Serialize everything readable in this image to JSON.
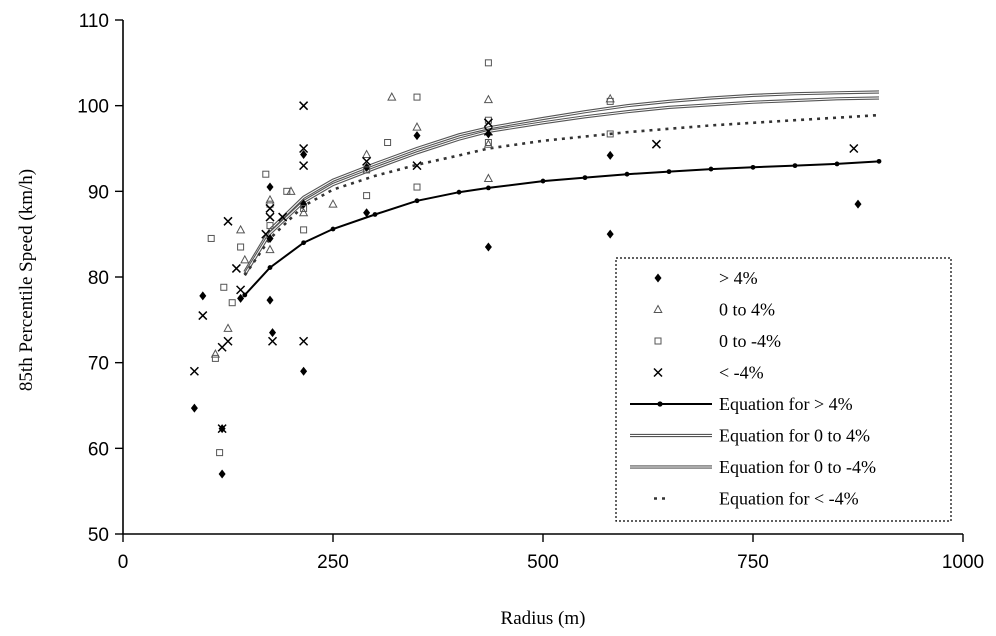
{
  "chart_data": {
    "type": "scatter",
    "title": "",
    "xlabel": "Radius (m)",
    "ylabel": "85th Percentile Speed (km/h)",
    "xlim": [
      0,
      1000
    ],
    "ylim": [
      50,
      110
    ],
    "xticks": [
      0,
      250,
      500,
      750,
      1000
    ],
    "yticks": [
      50,
      60,
      70,
      80,
      90,
      100,
      110
    ],
    "grid": false,
    "legend_position": "bottom-right",
    "series": [
      {
        "name": "> 4%",
        "kind": "points",
        "marker": "diamond",
        "points": [
          [
            85,
            64.7
          ],
          [
            95,
            77.8
          ],
          [
            118,
            62.3
          ],
          [
            118,
            57
          ],
          [
            140,
            77.5
          ],
          [
            175,
            90.5
          ],
          [
            175,
            84.5
          ],
          [
            175,
            77.3
          ],
          [
            178,
            73.5
          ],
          [
            215,
            69
          ],
          [
            215,
            88.5
          ],
          [
            215,
            94.3
          ],
          [
            290,
            92.8
          ],
          [
            290,
            87.5
          ],
          [
            350,
            96.5
          ],
          [
            435,
            96.7
          ],
          [
            435,
            83.5
          ],
          [
            580,
            94.2
          ],
          [
            580,
            85
          ],
          [
            875,
            88.5
          ]
        ]
      },
      {
        "name": "0 to 4%",
        "kind": "points",
        "marker": "triangle",
        "points": [
          [
            110,
            71
          ],
          [
            125,
            74
          ],
          [
            140,
            85.5
          ],
          [
            145,
            82
          ],
          [
            175,
            83.2
          ],
          [
            175,
            89
          ],
          [
            200,
            90
          ],
          [
            215,
            87.5
          ],
          [
            250,
            88.5
          ],
          [
            290,
            94.3
          ],
          [
            320,
            101
          ],
          [
            350,
            97.5
          ],
          [
            435,
            100.7
          ],
          [
            435,
            91.5
          ],
          [
            435,
            95.5
          ],
          [
            580,
            100.8
          ]
        ]
      },
      {
        "name": "0 to -4%",
        "kind": "points",
        "marker": "square",
        "points": [
          [
            105,
            84.5
          ],
          [
            115,
            59.5
          ],
          [
            110,
            70.5
          ],
          [
            120,
            78.8
          ],
          [
            130,
            77
          ],
          [
            140,
            83.5
          ],
          [
            170,
            92
          ],
          [
            175,
            88.5
          ],
          [
            175,
            86
          ],
          [
            195,
            90
          ],
          [
            215,
            85.5
          ],
          [
            215,
            88
          ],
          [
            290,
            92.5
          ],
          [
            290,
            89.5
          ],
          [
            315,
            95.7
          ],
          [
            350,
            101
          ],
          [
            350,
            90.5
          ],
          [
            435,
            105
          ],
          [
            435,
            98.3
          ],
          [
            435,
            95.7
          ],
          [
            580,
            96.7
          ],
          [
            580,
            100.5
          ]
        ]
      },
      {
        "name": "< -4%",
        "kind": "points",
        "marker": "x",
        "points": [
          [
            85,
            69
          ],
          [
            95,
            75.5
          ],
          [
            118,
            62.3
          ],
          [
            118,
            71.8
          ],
          [
            125,
            72.5
          ],
          [
            125,
            86.5
          ],
          [
            135,
            81
          ],
          [
            140,
            78.5
          ],
          [
            170,
            85
          ],
          [
            175,
            87
          ],
          [
            175,
            88
          ],
          [
            178,
            72.5
          ],
          [
            190,
            87
          ],
          [
            215,
            100
          ],
          [
            215,
            95
          ],
          [
            215,
            93
          ],
          [
            215,
            72.5
          ],
          [
            290,
            93.5
          ],
          [
            350,
            93
          ],
          [
            435,
            97
          ],
          [
            435,
            98
          ],
          [
            635,
            95.5
          ],
          [
            870,
            95
          ]
        ]
      },
      {
        "name": "Equation for > 4%",
        "kind": "curve",
        "style": "solid-dots",
        "points": [
          [
            145,
            77.9
          ],
          [
            175,
            81.1
          ],
          [
            215,
            84
          ],
          [
            250,
            85.6
          ],
          [
            300,
            87.3
          ],
          [
            350,
            88.9
          ],
          [
            400,
            89.9
          ],
          [
            435,
            90.4
          ],
          [
            500,
            91.2
          ],
          [
            550,
            91.6
          ],
          [
            600,
            92
          ],
          [
            650,
            92.3
          ],
          [
            700,
            92.6
          ],
          [
            750,
            92.8
          ],
          [
            800,
            93
          ],
          [
            850,
            93.2
          ],
          [
            900,
            93.5
          ]
        ]
      },
      {
        "name": "Equation for 0 to 4%",
        "kind": "curve",
        "style": "double",
        "points": [
          [
            145,
            80.6
          ],
          [
            175,
            85.5
          ],
          [
            215,
            89.3
          ],
          [
            250,
            91.3
          ],
          [
            300,
            93.2
          ],
          [
            350,
            95
          ],
          [
            400,
            96.6
          ],
          [
            435,
            97.4
          ],
          [
            500,
            98.5
          ],
          [
            550,
            99.3
          ],
          [
            600,
            100
          ],
          [
            650,
            100.5
          ],
          [
            700,
            100.9
          ],
          [
            750,
            101.2
          ],
          [
            800,
            101.4
          ],
          [
            850,
            101.5
          ],
          [
            900,
            101.6
          ]
        ]
      },
      {
        "name": "Equation for 0 to -4%",
        "kind": "curve",
        "style": "double",
        "points": [
          [
            145,
            80.3
          ],
          [
            175,
            85.1
          ],
          [
            215,
            88.8
          ],
          [
            250,
            90.8
          ],
          [
            300,
            92.7
          ],
          [
            350,
            94.5
          ],
          [
            400,
            96.1
          ],
          [
            435,
            97
          ],
          [
            500,
            98
          ],
          [
            550,
            98.7
          ],
          [
            600,
            99.3
          ],
          [
            650,
            99.8
          ],
          [
            700,
            100.1
          ],
          [
            750,
            100.4
          ],
          [
            800,
            100.6
          ],
          [
            850,
            100.8
          ],
          [
            900,
            100.9
          ]
        ]
      },
      {
        "name": "Equation for < -4%",
        "kind": "curve",
        "style": "dashed",
        "points": [
          [
            145,
            80.2
          ],
          [
            175,
            84.5
          ],
          [
            215,
            88.3
          ],
          [
            250,
            90.2
          ],
          [
            300,
            91.8
          ],
          [
            350,
            93.1
          ],
          [
            400,
            94.2
          ],
          [
            435,
            95
          ],
          [
            500,
            95.9
          ],
          [
            550,
            96.4
          ],
          [
            600,
            96.9
          ],
          [
            650,
            97.3
          ],
          [
            700,
            97.7
          ],
          [
            750,
            98
          ],
          [
            800,
            98.3
          ],
          [
            850,
            98.6
          ],
          [
            900,
            98.9
          ]
        ]
      }
    ]
  }
}
